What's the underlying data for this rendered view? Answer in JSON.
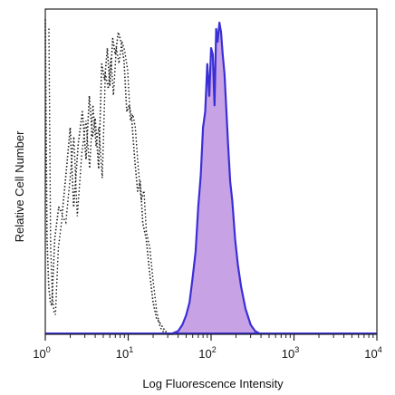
{
  "chart_data": {
    "type": "area",
    "title": "",
    "xlabel": "Log Fluorescence Intensity",
    "ylabel": "Relative Cell Number",
    "x_scale": "log",
    "xlim": [
      1,
      10000
    ],
    "ylim": [
      0,
      100
    ],
    "grid": false,
    "x_ticks": [
      {
        "base": "10",
        "exp": "0",
        "value": 1
      },
      {
        "base": "10",
        "exp": "1",
        "value": 10
      },
      {
        "base": "10",
        "exp": "2",
        "value": 100
      },
      {
        "base": "10",
        "exp": "3",
        "value": 1000
      },
      {
        "base": "10",
        "exp": "4",
        "value": 10000
      }
    ],
    "series": [
      {
        "style": "dotted-outline",
        "color": "#1a1a1a",
        "x": [
          1.0,
          1.05,
          1.1,
          1.15,
          1.2,
          1.3,
          1.45,
          1.6,
          1.8,
          2.0,
          2.2,
          2.5,
          2.8,
          3.1,
          3.4,
          3.7,
          4.0,
          4.4,
          4.8,
          5.2,
          5.6,
          6.0,
          6.5,
          7.0,
          7.6,
          8.2,
          8.9,
          9.6,
          10.3,
          11.0,
          12.0,
          13.0,
          14.0,
          15.0,
          16.5,
          18.0,
          20.0,
          22.0,
          25.0,
          28.0,
          32.0
        ],
        "y": [
          99,
          30,
          15,
          10,
          9,
          30,
          40,
          38,
          52,
          65,
          40,
          60,
          70,
          55,
          75,
          62,
          68,
          52,
          85,
          80,
          90,
          78,
          93,
          88,
          95,
          92,
          86,
          70,
          72,
          68,
          55,
          45,
          48,
          35,
          30,
          20,
          10,
          5,
          3,
          1,
          0
        ]
      },
      {
        "style": "filled",
        "color": "#3a2fd6",
        "fill": "#c7a3e6",
        "x": [
          32.0,
          40.0,
          45.0,
          50.0,
          55.0,
          60.0,
          65.0,
          70.0,
          75.0,
          80.0,
          85.0,
          90.0,
          95.0,
          100.0,
          105.0,
          110.0,
          115.0,
          120.0,
          126.0,
          132.0,
          138.0,
          145.0,
          152.0,
          160.0,
          170.0,
          180.0,
          195.0,
          210.0,
          230.0,
          260.0,
          300.0,
          340.0,
          400.0
        ],
        "y": [
          0,
          1,
          3,
          6,
          10,
          18,
          26,
          40,
          50,
          65,
          70,
          85,
          75,
          90,
          88,
          72,
          96,
          92,
          98,
          95,
          88,
          82,
          72,
          60,
          48,
          42,
          30,
          22,
          15,
          8,
          3,
          1,
          0
        ]
      }
    ]
  }
}
